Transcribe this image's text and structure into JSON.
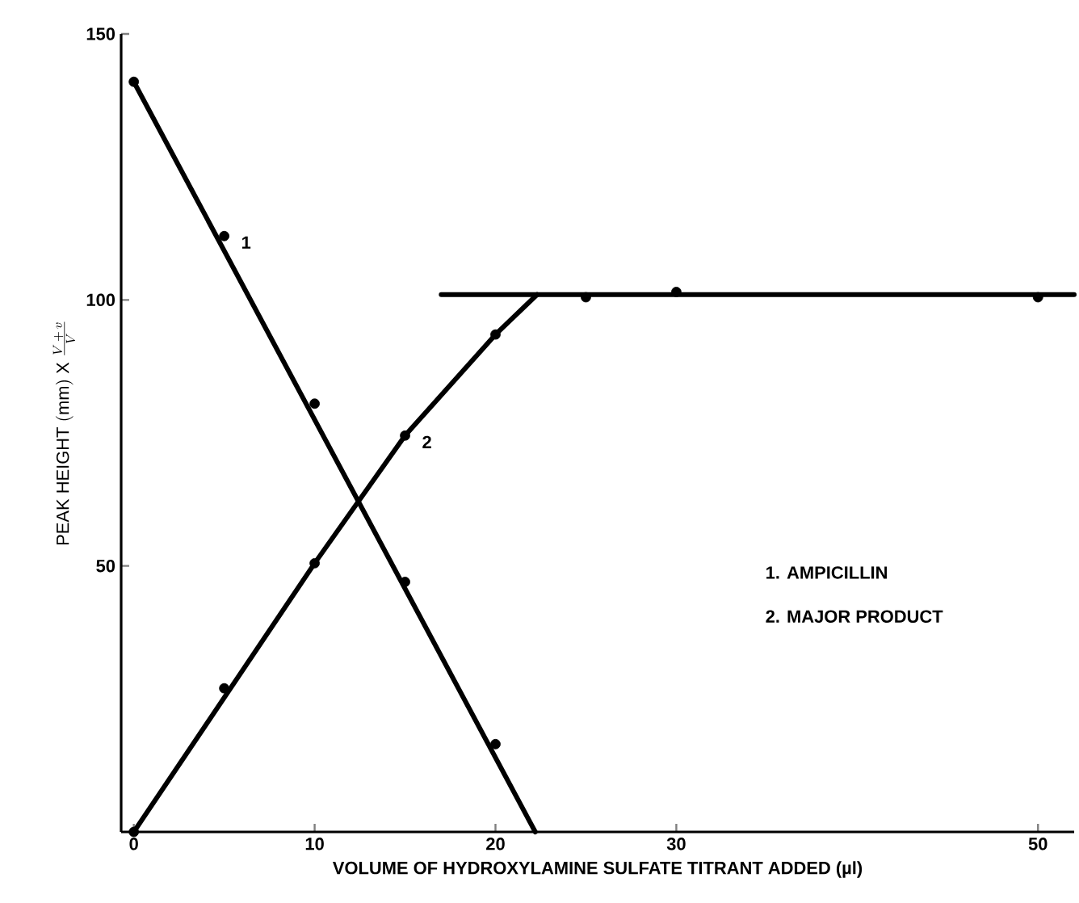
{
  "chart_data": {
    "type": "scatter",
    "xlabel": "VOLUME OF HYDROXYLAMINE SULFATE TITRANT ADDED (µl)",
    "ylabel": "\\mathrm{PEAK\\ HEIGHT\\ (mm)\\ X}\\ \\frac{V\\,+\\,v}{V}",
    "xlim": [
      -0.7,
      52
    ],
    "ylim": [
      0,
      150
    ],
    "xticks": [
      0,
      10,
      20,
      30,
      50
    ],
    "yticks": [
      50,
      100,
      150
    ],
    "grid": false,
    "series": [
      {
        "name": "1",
        "color": "#000000",
        "marker": "circle",
        "x": [
          0,
          5,
          10,
          15,
          20
        ],
        "values": [
          141,
          112,
          80.5,
          47,
          16.5
        ]
      },
      {
        "name": "2",
        "color": "#000000",
        "marker": "circle",
        "x": [
          0,
          5,
          10,
          15,
          20,
          25,
          30,
          50
        ],
        "values": [
          0,
          27,
          50.5,
          74.5,
          93.5,
          100.5,
          101.5,
          100.5
        ]
      },
      {
        "type": "line",
        "color": "#000000",
        "marker": "none",
        "x": [
          0,
          22.2
        ],
        "values": [
          141,
          0
        ]
      },
      {
        "type": "line",
        "color": "#000000",
        "marker": "none",
        "x": [
          0,
          10,
          15,
          20,
          22.3
        ],
        "values": [
          0,
          50.5,
          74.5,
          93.5,
          101
        ]
      },
      {
        "type": "line",
        "color": "#000000",
        "marker": "none",
        "x": [
          17,
          52
        ],
        "values": [
          101,
          101
        ]
      }
    ],
    "annotations": [
      "1. AMPICILLIN",
      "2. MAJOR PRODUCT"
    ]
  }
}
